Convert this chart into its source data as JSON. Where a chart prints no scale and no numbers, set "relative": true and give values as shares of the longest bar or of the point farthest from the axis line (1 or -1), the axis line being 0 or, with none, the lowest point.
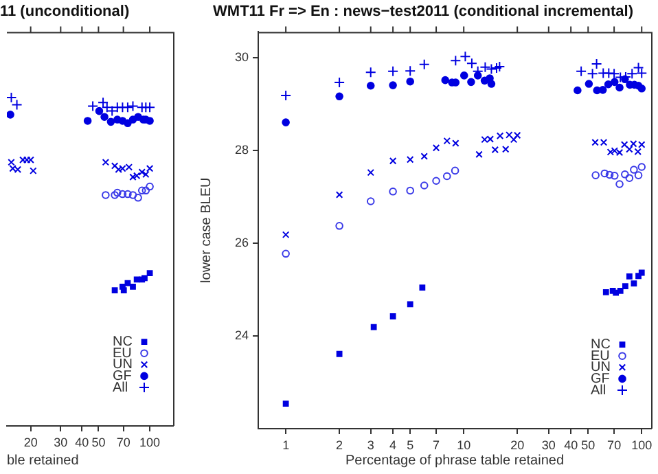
{
  "chart_data": [
    {
      "type": "scatter",
      "title": "11 (unconditional)",
      "xlabel": "ble retained",
      "log": "x",
      "relative": true,
      "xlim": [
        14.5,
        137
      ],
      "xticks": [
        20,
        30,
        40,
        50,
        70,
        100
      ],
      "grid": false,
      "legend": "bottom right",
      "series": [
        {
          "name": "NC",
          "color": "#0000e0",
          "marker": "square",
          "x": [
            62.3,
            69.2,
            70.4,
            74.2,
            79.6,
            83.9,
            90,
            93.2,
            100
          ],
          "values": [
            0.413,
            0.424,
            0.413,
            0.435,
            0.424,
            0.446,
            0.446,
            0.45,
            0.465
          ]
        },
        {
          "name": "EU",
          "color": "#3a3ae8",
          "marker": "circle-open",
          "x": [
            55.1,
            62.3,
            64.5,
            69.2,
            74.2,
            79.6,
            85.4,
            90,
            94.8,
            100
          ],
          "values": [
            0.703,
            0.703,
            0.71,
            0.706,
            0.706,
            0.703,
            0.695,
            0.717,
            0.717,
            0.729
          ]
        },
        {
          "name": "UN",
          "color": "#0000e0",
          "marker": "x",
          "x": [
            15.4,
            15.7,
            16.8,
            18,
            19,
            20,
            20.7,
            55.1,
            62.3,
            65.6,
            69.2,
            75.5,
            79.6,
            83.9,
            90,
            94.8,
            100
          ],
          "values": [
            0.803,
            0.784,
            0.781,
            0.81,
            0.81,
            0.81,
            0.777,
            0.803,
            0.792,
            0.781,
            0.784,
            0.788,
            0.758,
            0.762,
            0.773,
            0.766,
            0.784
          ]
        },
        {
          "name": "GF",
          "color": "#0000e0",
          "marker": "circle",
          "x": [
            15.2,
            43.2,
            50.5,
            54.2,
            59.1,
            64.5,
            69.2,
            74.2,
            79.6,
            85.4,
            91.6,
            94.8,
            100
          ],
          "values": [
            0.948,
            0.929,
            0.959,
            0.941,
            0.926,
            0.933,
            0.929,
            0.922,
            0.933,
            0.941,
            0.933,
            0.933,
            0.929
          ]
        },
        {
          "name": "All",
          "color": "#0000e0",
          "marker": "cross",
          "x": [
            15.4,
            16.6,
            46.3,
            53.2,
            56.1,
            60.1,
            64.5,
            69.2,
            74.2,
            79.6,
            90,
            94.8,
            100
          ],
          "values": [
            1.0,
            0.978,
            0.974,
            0.985,
            0.97,
            0.959,
            0.97,
            0.97,
            0.97,
            0.974,
            0.97,
            0.97,
            0.97
          ]
        }
      ]
    },
    {
      "type": "scatter",
      "title": "WMT11 Fr => En : news−test2011 (conditional incremental)",
      "xlabel": "Percentage of phrase table retained",
      "ylabel": "lower case BLEU",
      "log": "x",
      "xlim": [
        0.73,
        113
      ],
      "xticks": [
        1,
        2,
        3,
        4,
        5,
        7,
        10,
        20,
        30,
        40,
        50,
        70,
        100
      ],
      "ylim": [
        22,
        30.55
      ],
      "yticks": [
        24,
        26,
        28,
        30
      ],
      "grid": false,
      "legend": "bottom right",
      "series": [
        {
          "name": "NC",
          "color": "#0000e0",
          "marker": "square",
          "x": [
            1,
            2,
            3.12,
            4,
            5,
            5.85,
            63,
            68.8,
            71.6,
            75.9,
            80.9,
            85.3,
            90.4,
            95.9,
            100
          ],
          "values": [
            22.54,
            23.61,
            24.19,
            24.42,
            24.68,
            25.04,
            24.94,
            24.97,
            24.93,
            24.97,
            25.07,
            25.28,
            25.13,
            25.29,
            25.36
          ]
        },
        {
          "name": "EU",
          "color": "#3a3ae8",
          "marker": "circle-open",
          "x": [
            1,
            2,
            3,
            4,
            5,
            6,
            7,
            8.05,
            8.94,
            55.1,
            61.9,
            66,
            70.4,
            75.1,
            80.5,
            85.3,
            90.4,
            95.9,
            100
          ],
          "values": [
            25.77,
            26.37,
            26.9,
            27.11,
            27.13,
            27.24,
            27.34,
            27.44,
            27.56,
            27.46,
            27.5,
            27.47,
            27.45,
            27.27,
            27.48,
            27.4,
            27.58,
            27.46,
            27.64
          ]
        },
        {
          "name": "UN",
          "color": "#0000e0",
          "marker": "x",
          "x": [
            1,
            2,
            3,
            4,
            5,
            6,
            7,
            8.05,
            9,
            12.2,
            13.1,
            14.1,
            15,
            16,
            17.2,
            18,
            19.1,
            20,
            54.8,
            61.2,
            66.8,
            70.4,
            75.1,
            80,
            85.3,
            89.9,
            95.2,
            100
          ],
          "values": [
            26.18,
            27.04,
            27.52,
            27.77,
            27.8,
            27.87,
            28.05,
            28.2,
            28.15,
            27.91,
            28.23,
            28.24,
            28.01,
            28.31,
            28.02,
            28.33,
            28.23,
            28.32,
            28.17,
            28.17,
            27.96,
            27.99,
            27.95,
            28.12,
            28.02,
            28.14,
            27.97,
            28.12
          ]
        },
        {
          "name": "GF",
          "color": "#0000e0",
          "marker": "circle",
          "x": [
            1,
            2,
            3,
            4,
            5,
            7.87,
            8.59,
            9,
            10.05,
            11,
            12,
            13.1,
            14,
            14.3,
            43.6,
            50.5,
            56.1,
            60.5,
            64.9,
            70.4,
            75.1,
            80.5,
            85.8,
            91,
            95.9,
            100
          ],
          "values": [
            28.6,
            29.16,
            29.39,
            29.4,
            29.48,
            29.51,
            29.46,
            29.46,
            29.61,
            29.47,
            29.61,
            29.5,
            29.55,
            29.43,
            29.29,
            29.43,
            29.29,
            29.3,
            29.42,
            29.47,
            29.35,
            29.53,
            29.41,
            29.41,
            29.39,
            29.33
          ]
        },
        {
          "name": "All",
          "color": "#0000e0",
          "marker": "cross",
          "x": [
            1,
            2,
            3,
            4,
            5,
            6,
            9,
            10.2,
            11.1,
            12,
            13.2,
            14.3,
            15.3,
            15.9,
            45.7,
            52.9,
            55.8,
            60.8,
            65.3,
            70,
            75.9,
            81.3,
            88.3,
            95.9,
            100
          ],
          "values": [
            29.18,
            29.46,
            29.68,
            29.7,
            29.71,
            29.85,
            29.93,
            30.02,
            29.87,
            29.7,
            29.79,
            29.75,
            29.77,
            29.8,
            29.7,
            29.65,
            29.86,
            29.66,
            29.66,
            29.65,
            29.57,
            29.58,
            29.65,
            29.78,
            29.66
          ]
        }
      ]
    }
  ]
}
